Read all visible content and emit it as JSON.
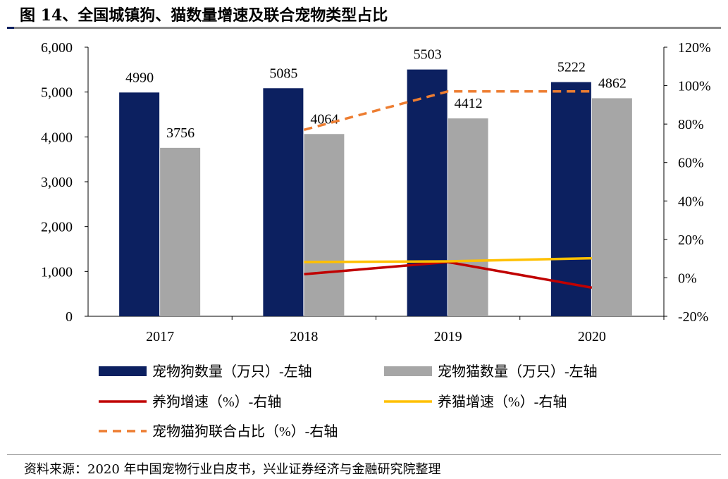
{
  "title": "图 14、全国城镇狗、猫数量增速及联合宠物类型占比",
  "source": "资料来源：2020 年中国宠物行业白皮书，兴业证券经济与金融研究院整理",
  "chart_data": {
    "type": "bar",
    "categories": [
      "2017",
      "2018",
      "2019",
      "2020"
    ],
    "left_axis": {
      "range": [
        0,
        6000
      ],
      "ticks": [
        "0",
        "1,000",
        "2,000",
        "3,000",
        "4,000",
        "5,000",
        "6,000"
      ]
    },
    "right_axis": {
      "range": [
        -20,
        120
      ],
      "ticks": [
        "-20%",
        "0%",
        "20%",
        "40%",
        "60%",
        "80%",
        "100%",
        "120%"
      ]
    },
    "grid": false,
    "legend_placement": "bottom",
    "series": [
      {
        "name": "宠物狗数量（万只）-左轴",
        "type": "bar",
        "axis": "left",
        "color": "#0c2060",
        "values": [
          4990,
          5085,
          5503,
          5222
        ]
      },
      {
        "name": "宠物猫数量（万只）-左轴",
        "type": "bar",
        "axis": "left",
        "color": "#a6a6a6",
        "values": [
          3756,
          4064,
          4412,
          4862
        ]
      },
      {
        "name": "养狗增速（%）-右轴",
        "type": "line",
        "axis": "right",
        "color": "#c00000",
        "values": [
          null,
          1.9,
          8.2,
          -5.1
        ]
      },
      {
        "name": "养猫增速（%）-右轴",
        "type": "line",
        "axis": "right",
        "color": "#ffc000",
        "values": [
          null,
          8.2,
          8.6,
          10.2
        ]
      },
      {
        "name": "宠物猫狗联合占比（%）-右轴",
        "type": "line",
        "dashed": true,
        "axis": "right",
        "color": "#ed7d31",
        "values": [
          null,
          77,
          97,
          97
        ]
      }
    ]
  }
}
